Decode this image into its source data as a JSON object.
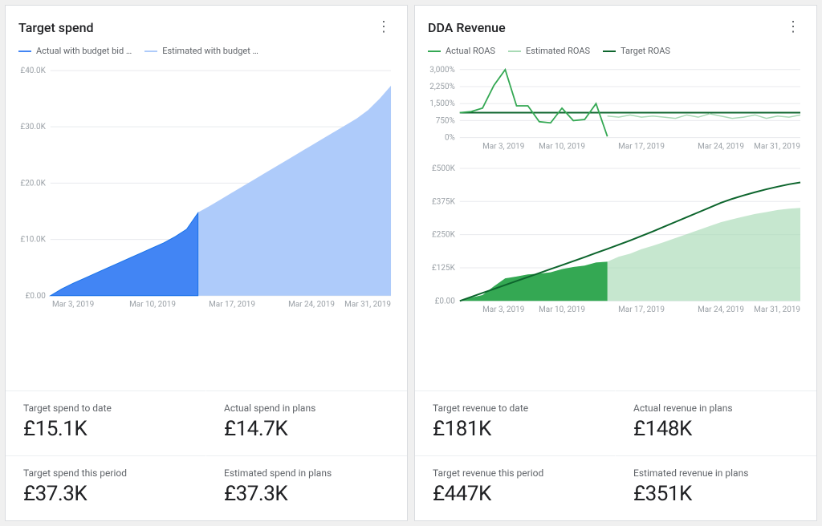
{
  "left": {
    "title": "Target spend",
    "legend": [
      {
        "label": "Actual with budget bid …",
        "color": "#4285f4"
      },
      {
        "label": "Estimated with budget …",
        "color": "#aecbfa"
      }
    ],
    "chart": {
      "type": "area",
      "background_color": "#ffffff",
      "grid_color": "#e8eaed",
      "axis_text_color": "#9aa0a6",
      "axis_fontsize": 10,
      "series": [
        {
          "name": "estimated",
          "fill": "#aecbfa",
          "stroke": "#aecbfa",
          "stroke_width": 0,
          "opacity": 1,
          "x": [
            0,
            1,
            2,
            3,
            4,
            5,
            6,
            7,
            8,
            9,
            10,
            11,
            12,
            13,
            14,
            15,
            16,
            17,
            18,
            19,
            20,
            21,
            22,
            23,
            24,
            25,
            26,
            27,
            28,
            29,
            30
          ],
          "y": [
            0,
            1200,
            2200,
            3100,
            4000,
            4900,
            5800,
            6700,
            7600,
            8500,
            9400,
            10500,
            11800,
            14800,
            15900,
            17100,
            18300,
            19500,
            20700,
            21900,
            23100,
            24300,
            25500,
            26700,
            27900,
            29100,
            30300,
            31500,
            33000,
            35000,
            37300
          ]
        },
        {
          "name": "actual",
          "fill": "#4285f4",
          "stroke": "#1a73e8",
          "stroke_width": 1,
          "opacity": 1,
          "x": [
            0,
            1,
            2,
            3,
            4,
            5,
            6,
            7,
            8,
            9,
            10,
            11,
            12,
            13
          ],
          "y": [
            0,
            1200,
            2200,
            3100,
            4000,
            4900,
            5800,
            6700,
            7600,
            8500,
            9400,
            10500,
            11800,
            14700
          ]
        }
      ],
      "x_ticks": [
        0,
        2,
        9,
        16,
        23,
        30
      ],
      "x_tick_labels": [
        "",
        "Mar 3, 2019",
        "Mar 10, 2019",
        "Mar 17, 2019",
        "Mar 24, 2019",
        "Mar 31, 2019"
      ],
      "y_ticks": [
        0,
        10000,
        20000,
        30000,
        40000
      ],
      "y_tick_labels": [
        "£0.00",
        "£10.0K",
        "£20.0K",
        "£30.0K",
        "£40.0K"
      ],
      "xlim": [
        0,
        30
      ],
      "ylim": [
        0,
        40000
      ]
    },
    "metrics": [
      {
        "label": "Target spend to date",
        "value": "£15.1K"
      },
      {
        "label": "Actual spend in plans",
        "value": "£14.7K"
      },
      {
        "label": "Target spend this period",
        "value": "£37.3K"
      },
      {
        "label": "Estimated spend in plans",
        "value": "£37.3K"
      }
    ]
  },
  "right": {
    "title": "DDA Revenue",
    "legend": [
      {
        "label": "Actual ROAS",
        "color": "#34a853"
      },
      {
        "label": "Estimated ROAS",
        "color": "#a8dab5"
      },
      {
        "label": "Target ROAS",
        "color": "#0d652d"
      }
    ],
    "roas_chart": {
      "type": "line",
      "background_color": "#ffffff",
      "grid_color": "#e8eaed",
      "axis_text_color": "#9aa0a6",
      "axis_fontsize": 10,
      "xlim": [
        0,
        30
      ],
      "ylim": [
        0,
        3100
      ],
      "y_ticks": [
        0,
        750,
        1500,
        2250,
        3000
      ],
      "y_tick_labels": [
        "0%",
        "750%",
        "1,500%",
        "2,250%",
        "3,000%"
      ],
      "x_ticks": [
        2,
        9,
        16,
        23,
        30
      ],
      "x_tick_labels": [
        "Mar 3, 2019",
        "Mar 10, 2019",
        "Mar 17, 2019",
        "Mar 24, 2019",
        "Mar 31, 2019"
      ],
      "series": [
        {
          "name": "target",
          "stroke": "#0d652d",
          "stroke_width": 2,
          "fill": "none",
          "x": [
            0,
            30
          ],
          "y": [
            1100,
            1100
          ]
        },
        {
          "name": "estimated",
          "stroke": "#a8dab5",
          "stroke_width": 1.5,
          "fill": "none",
          "x": [
            13,
            14,
            15,
            16,
            17,
            18,
            19,
            20,
            21,
            22,
            23,
            24,
            25,
            26,
            27,
            28,
            29,
            30
          ],
          "y": [
            950,
            900,
            1000,
            900,
            950,
            900,
            850,
            1000,
            900,
            1050,
            950,
            850,
            900,
            1000,
            850,
            950,
            900,
            1000
          ]
        },
        {
          "name": "actual",
          "stroke": "#34a853",
          "stroke_width": 1.8,
          "fill": "none",
          "x": [
            0,
            1,
            2,
            3,
            4,
            5,
            6,
            7,
            8,
            9,
            10,
            11,
            12,
            13
          ],
          "y": [
            1100,
            1150,
            1300,
            2300,
            3000,
            1400,
            1400,
            700,
            650,
            1300,
            750,
            800,
            1500,
            50
          ]
        }
      ]
    },
    "rev_chart": {
      "type": "area-with-line",
      "background_color": "#ffffff",
      "grid_color": "#e8eaed",
      "axis_text_color": "#9aa0a6",
      "axis_fontsize": 10,
      "xlim": [
        0,
        30
      ],
      "ylim": [
        0,
        500000
      ],
      "y_ticks": [
        0,
        125000,
        250000,
        375000,
        500000
      ],
      "y_tick_labels": [
        "£0.00",
        "£125K",
        "£250K",
        "£375K",
        "£500K"
      ],
      "x_ticks": [
        2,
        9,
        16,
        23,
        30
      ],
      "x_tick_labels": [
        "Mar 3, 2019",
        "Mar 10, 2019",
        "Mar 17, 2019",
        "Mar 24, 2019",
        "Mar 31, 2019"
      ],
      "area_series": [
        {
          "name": "estimated",
          "fill": "#a8dab5",
          "stroke": "none",
          "opacity": 0.65,
          "x": [
            0,
            1,
            2,
            3,
            4,
            5,
            6,
            7,
            8,
            9,
            10,
            11,
            12,
            13,
            14,
            15,
            16,
            17,
            18,
            19,
            20,
            21,
            22,
            23,
            24,
            25,
            26,
            27,
            28,
            29,
            30
          ],
          "y": [
            0,
            12000,
            22000,
            55000,
            85000,
            92000,
            100000,
            103000,
            108000,
            120000,
            128000,
            133000,
            145000,
            148000,
            167000,
            178000,
            195000,
            208000,
            222000,
            237000,
            252000,
            267000,
            282000,
            297000,
            308000,
            318000,
            328000,
            335000,
            343000,
            348000,
            351000
          ]
        },
        {
          "name": "actual",
          "fill": "#34a853",
          "stroke": "none",
          "opacity": 1,
          "x": [
            0,
            1,
            2,
            3,
            4,
            5,
            6,
            7,
            8,
            9,
            10,
            11,
            12,
            13
          ],
          "y": [
            0,
            12000,
            22000,
            55000,
            85000,
            92000,
            100000,
            103000,
            108000,
            120000,
            128000,
            133000,
            145000,
            148000
          ]
        }
      ],
      "line_series": [
        {
          "name": "target",
          "stroke": "#0d652d",
          "stroke_width": 2,
          "x": [
            0,
            1,
            2,
            3,
            4,
            5,
            6,
            7,
            8,
            9,
            10,
            11,
            12,
            13,
            14,
            15,
            16,
            17,
            18,
            19,
            20,
            21,
            22,
            23,
            24,
            25,
            26,
            27,
            28,
            29,
            30
          ],
          "y": [
            0,
            15000,
            30000,
            45000,
            60000,
            75000,
            90000,
            105000,
            120000,
            135000,
            150000,
            165000,
            181000,
            196000,
            212000,
            228000,
            245000,
            262000,
            280000,
            298000,
            316000,
            334000,
            352000,
            370000,
            385000,
            398000,
            410000,
            421000,
            431000,
            440000,
            447000
          ]
        }
      ]
    },
    "metrics": [
      {
        "label": "Target revenue to date",
        "value": "£181K"
      },
      {
        "label": "Actual revenue in plans",
        "value": "£148K"
      },
      {
        "label": "Target revenue this period",
        "value": "£447K"
      },
      {
        "label": "Estimated revenue in plans",
        "value": "£351K"
      }
    ]
  }
}
